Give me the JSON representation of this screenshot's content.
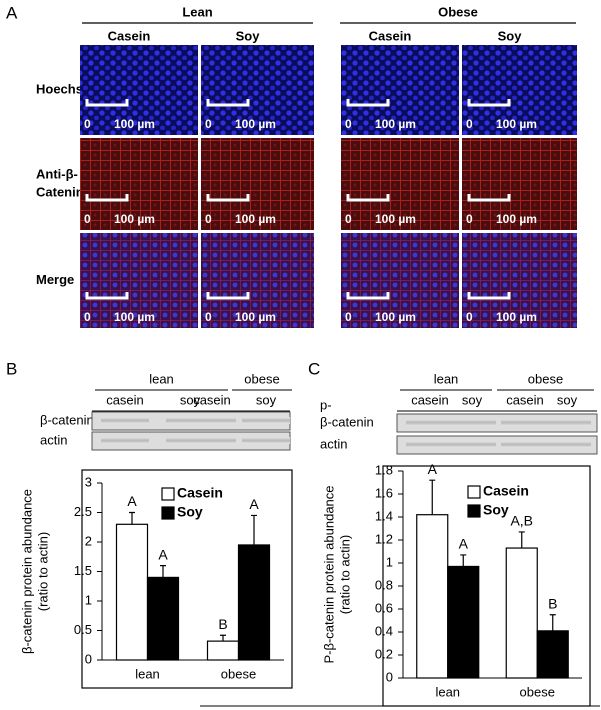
{
  "panel_a": {
    "label": "A",
    "groups": [
      "Lean",
      "Obese"
    ],
    "columns": [
      "Casein",
      "Soy",
      "Casein",
      "Soy"
    ],
    "rows": [
      [
        "Hoechst"
      ],
      [
        "Anti-β-",
        "Catenin"
      ],
      [
        "Merge"
      ]
    ],
    "scale_bar": {
      "start": "0",
      "end": "100 µm"
    }
  },
  "panel_b": {
    "label": "B",
    "blot": {
      "groups": [
        {
          "label": "lean",
          "lanes": [
            "casein",
            "soy"
          ]
        },
        {
          "label": "obese",
          "lanes": [
            "casein",
            "soy"
          ]
        }
      ],
      "rows": [
        [
          "β-catenin"
        ],
        [
          "actin"
        ]
      ]
    }
  },
  "panel_c": {
    "label": "C",
    "blot": {
      "groups": [
        {
          "label": "lean",
          "lanes": [
            "casein",
            "soy"
          ]
        },
        {
          "label": "obese",
          "lanes": [
            "casein",
            "soy"
          ]
        }
      ],
      "rows": [
        [
          "p-",
          "β-catenin"
        ],
        [
          "actin"
        ]
      ]
    }
  },
  "chart_data": [
    {
      "type": "bar",
      "ylabel": [
        "β-catenin protein abundance",
        "(ratio to actin)"
      ],
      "categories": [
        "lean",
        "obese"
      ],
      "series": [
        {
          "name": "Casein",
          "color": "#ffffff",
          "values": [
            2.3,
            0.32
          ],
          "errors": [
            0.2,
            0.1
          ],
          "letters": [
            "A",
            "B"
          ]
        },
        {
          "name": "Soy",
          "color": "#000000",
          "values": [
            1.4,
            1.95
          ],
          "errors": [
            0.2,
            0.5
          ],
          "letters": [
            "A",
            "A"
          ]
        }
      ],
      "ylim": [
        0,
        3
      ],
      "yticks": [
        0,
        0.5,
        1,
        1.5,
        2,
        2.5,
        3
      ]
    },
    {
      "type": "bar",
      "ylabel": [
        "P-β-catenin protein abundance",
        "(ratio to actin)"
      ],
      "categories": [
        "lean",
        "obese"
      ],
      "series": [
        {
          "name": "Casein",
          "color": "#ffffff",
          "values": [
            1.42,
            1.13
          ],
          "errors": [
            0.3,
            0.14
          ],
          "letters": [
            "A",
            "A,B"
          ]
        },
        {
          "name": "Soy",
          "color": "#000000",
          "values": [
            0.97,
            0.41
          ],
          "errors": [
            0.1,
            0.14
          ],
          "letters": [
            "A",
            "B"
          ]
        }
      ],
      "ylim": [
        0,
        1.8
      ],
      "yticks": [
        0,
        0.2,
        0.4,
        0.6,
        0.8,
        1,
        1.2,
        1.4,
        1.6,
        1.8
      ]
    }
  ]
}
